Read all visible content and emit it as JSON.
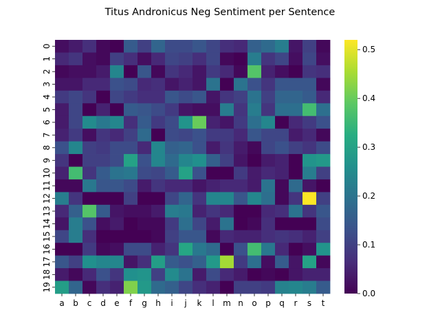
{
  "chart_data": {
    "type": "heatmap",
    "title": "Titus Andronicus Neg Sentiment per Sentence",
    "xlabel": "",
    "ylabel": "",
    "x_labels": [
      "a",
      "b",
      "c",
      "d",
      "e",
      "f",
      "g",
      "h",
      "i",
      "j",
      "k",
      "l",
      "m",
      "n",
      "o",
      "p",
      "q",
      "r",
      "s",
      "t"
    ],
    "y_labels": [
      "0",
      "1",
      "2",
      "3",
      "4",
      "5",
      "6",
      "7",
      "8",
      "9",
      "10",
      "11",
      "12",
      "13",
      "14",
      "15",
      "16",
      "17",
      "18",
      "19"
    ],
    "colorbar": {
      "min": 0.0,
      "max": 0.52,
      "ticks": [
        0.0,
        0.1,
        0.2,
        0.3,
        0.4,
        0.5
      ],
      "tick_labels": [
        "0.0",
        "0.1",
        "0.2",
        "0.3",
        "0.4",
        "0.5"
      ],
      "colormap": "viridis"
    },
    "values": [
      [
        0.02,
        0.04,
        0.07,
        0.01,
        0.0,
        0.15,
        0.1,
        0.17,
        0.12,
        0.12,
        0.14,
        0.11,
        0.07,
        0.06,
        0.16,
        0.18,
        0.22,
        0.03,
        0.1,
        0.01
      ],
      [
        0.06,
        0.08,
        0.02,
        0.01,
        0.1,
        0.07,
        0.02,
        0.06,
        0.11,
        0.1,
        0.07,
        0.11,
        0.01,
        0.0,
        0.22,
        0.08,
        0.11,
        0.02,
        0.11,
        0.02
      ],
      [
        0.01,
        0.02,
        0.02,
        0.04,
        0.24,
        0.0,
        0.14,
        0.01,
        0.08,
        0.06,
        0.03,
        0.09,
        0.06,
        0.01,
        0.38,
        0.05,
        0.02,
        0.0,
        0.08,
        0.07
      ],
      [
        0.03,
        0.03,
        0.06,
        0.06,
        0.13,
        0.12,
        0.06,
        0.07,
        0.03,
        0.05,
        0.03,
        0.2,
        0.0,
        0.2,
        0.13,
        0.08,
        0.14,
        0.14,
        0.14,
        0.01
      ],
      [
        0.09,
        0.11,
        0.08,
        0.0,
        0.11,
        0.09,
        0.07,
        0.07,
        0.14,
        0.12,
        0.14,
        0.03,
        0.08,
        0.1,
        0.2,
        0.1,
        0.17,
        0.17,
        0.15,
        0.06
      ],
      [
        0.04,
        0.11,
        0.0,
        0.05,
        0.0,
        0.15,
        0.14,
        0.12,
        0.09,
        0.03,
        0.02,
        0.02,
        0.22,
        0.08,
        0.22,
        0.08,
        0.19,
        0.19,
        0.36,
        0.19
      ],
      [
        0.04,
        0.11,
        0.25,
        0.21,
        0.24,
        0.07,
        0.15,
        0.09,
        0.12,
        0.27,
        0.4,
        0.05,
        0.03,
        0.09,
        0.19,
        0.24,
        0.0,
        0.06,
        0.09,
        0.13
      ],
      [
        0.05,
        0.09,
        0.02,
        0.08,
        0.06,
        0.1,
        0.18,
        0.0,
        0.12,
        0.11,
        0.13,
        0.09,
        0.09,
        0.06,
        0.14,
        0.11,
        0.11,
        0.04,
        0.06,
        0.01
      ],
      [
        0.13,
        0.24,
        0.1,
        0.09,
        0.12,
        0.12,
        0.06,
        0.24,
        0.16,
        0.17,
        0.13,
        0.04,
        0.08,
        0.04,
        0.01,
        0.11,
        0.13,
        0.1,
        0.08,
        0.12
      ],
      [
        0.08,
        0.0,
        0.1,
        0.1,
        0.12,
        0.3,
        0.13,
        0.24,
        0.18,
        0.24,
        0.26,
        0.16,
        0.1,
        0.03,
        0.0,
        0.04,
        0.05,
        0.0,
        0.27,
        0.28
      ],
      [
        0.05,
        0.36,
        0.08,
        0.15,
        0.2,
        0.21,
        0.12,
        0.11,
        0.15,
        0.3,
        0.13,
        0.0,
        0.0,
        0.09,
        0.04,
        0.06,
        0.05,
        0.0,
        0.22,
        0.1
      ],
      [
        0.01,
        0.01,
        0.21,
        0.14,
        0.14,
        0.12,
        0.04,
        0.08,
        0.06,
        0.06,
        0.03,
        0.05,
        0.06,
        0.06,
        0.04,
        0.2,
        0.01,
        0.18,
        0.03,
        0.0
      ],
      [
        0.22,
        0.08,
        0.0,
        0.0,
        0.0,
        0.1,
        0.0,
        0.0,
        0.11,
        0.17,
        0.08,
        0.24,
        0.24,
        0.14,
        0.24,
        0.19,
        0.01,
        0.08,
        0.52,
        0.1
      ],
      [
        0.06,
        0.16,
        0.38,
        0.15,
        0.03,
        0.02,
        0.02,
        0.04,
        0.22,
        0.21,
        0.05,
        0.08,
        0.06,
        0.0,
        0.0,
        0.06,
        0.07,
        0.2,
        0.08,
        0.14
      ],
      [
        0.03,
        0.22,
        0.13,
        0.02,
        0.04,
        0.0,
        0.01,
        0.01,
        0.09,
        0.19,
        0.11,
        0.04,
        0.2,
        0.0,
        0.01,
        0.07,
        0.0,
        0.0,
        0.0,
        0.12
      ],
      [
        0.11,
        0.22,
        0.07,
        0.0,
        0.0,
        0.0,
        0.0,
        0.01,
        0.1,
        0.14,
        0.14,
        0.01,
        0.06,
        0.05,
        0.05,
        0.07,
        0.08,
        0.07,
        0.05,
        0.1
      ],
      [
        0.0,
        0.0,
        0.09,
        0.01,
        0.02,
        0.12,
        0.12,
        0.05,
        0.08,
        0.31,
        0.21,
        0.18,
        0.0,
        0.13,
        0.36,
        0.21,
        0.06,
        0.0,
        0.02,
        0.27
      ],
      [
        0.14,
        0.1,
        0.26,
        0.24,
        0.24,
        0.03,
        0.07,
        0.29,
        0.15,
        0.13,
        0.16,
        0.28,
        0.45,
        0.09,
        0.19,
        0.02,
        0.15,
        0.03,
        0.3,
        0.01
      ],
      [
        0.04,
        0.01,
        0.06,
        0.13,
        0.08,
        0.26,
        0.27,
        0.1,
        0.25,
        0.2,
        0.04,
        0.12,
        0.06,
        0.04,
        0.0,
        0.01,
        0.0,
        0.03,
        0.05,
        0.05
      ],
      [
        0.29,
        0.17,
        0.01,
        0.07,
        0.05,
        0.42,
        0.28,
        0.18,
        0.16,
        0.11,
        0.07,
        0.05,
        0.0,
        0.1,
        0.1,
        0.09,
        0.23,
        0.24,
        0.22,
        0.15
      ]
    ]
  }
}
